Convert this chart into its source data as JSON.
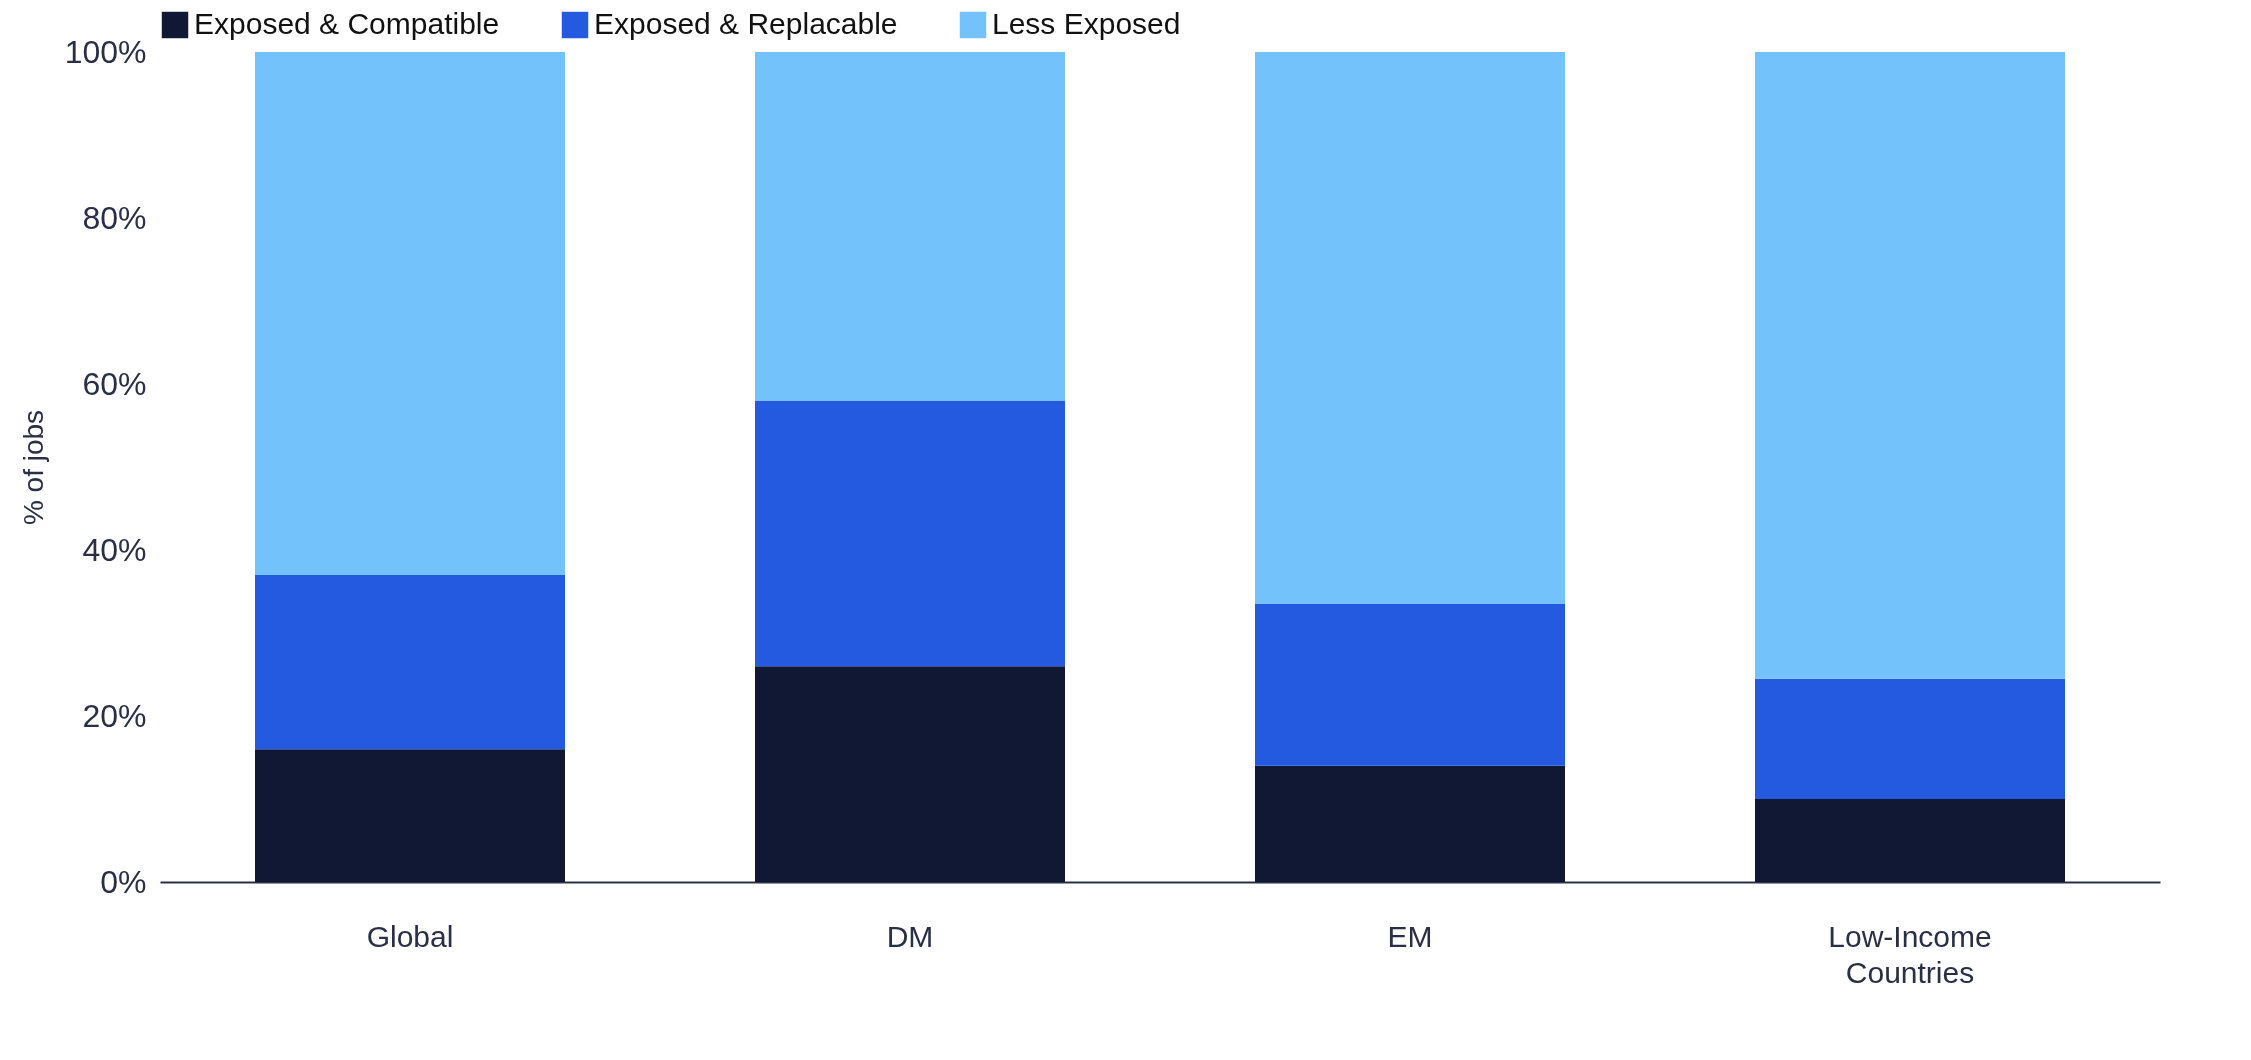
{
  "chart_data": {
    "type": "bar",
    "stacked": true,
    "ylabel": "% of jobs",
    "categories": [
      "Global",
      "DM",
      "EM",
      "Low-Income Countries"
    ],
    "series": [
      {
        "name": "Exposed & Compatible",
        "color": "#111833",
        "values": [
          16,
          26,
          14,
          10
        ]
      },
      {
        "name": "Exposed & Replacable",
        "color": "#245ae0",
        "values": [
          21,
          32,
          19.5,
          14.5
        ]
      },
      {
        "name": "Less Exposed",
        "color": "#74c2fb",
        "values": [
          63,
          42,
          66.5,
          75.5
        ]
      }
    ],
    "ylim": [
      0,
      100
    ],
    "yticks": [
      {
        "value": 0,
        "label": "0%"
      },
      {
        "value": 20,
        "label": "20%"
      },
      {
        "value": 40,
        "label": "40%"
      },
      {
        "value": 60,
        "label": "60%"
      },
      {
        "value": 80,
        "label": "80%"
      },
      {
        "value": 100,
        "label": "100%"
      }
    ],
    "grid": false,
    "legend": "top left"
  }
}
